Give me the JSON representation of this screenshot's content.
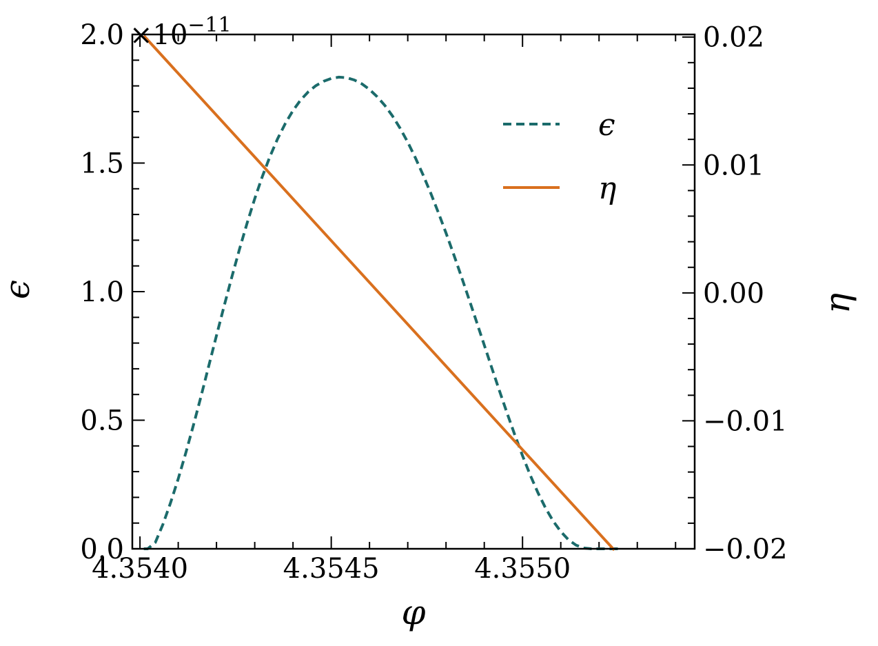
{
  "chart_data": {
    "type": "line",
    "x_axis": {
      "label": "φ",
      "range": [
        4.35398,
        4.35545
      ],
      "ticks": [
        4.354,
        4.3545,
        4.355
      ],
      "tick_labels": [
        "4.3540",
        "4.3545",
        "4.3550"
      ],
      "minor_step": 0.0001
    },
    "y_left": {
      "label": "ϵ",
      "range": [
        0,
        2.0
      ],
      "ticks": [
        0.0,
        0.5,
        1.0,
        1.5,
        2.0
      ],
      "tick_labels": [
        "0.0",
        "0.5",
        "1.0",
        "1.5",
        "2.0"
      ],
      "minor_step": 0.1,
      "scale_factor_label": "×10",
      "scale_factor_exponent": "−11"
    },
    "y_right": {
      "label": "η",
      "range": [
        -0.02,
        0.0202
      ],
      "ticks": [
        -0.02,
        -0.01,
        0.0,
        0.01,
        0.02
      ],
      "tick_labels": [
        "−0.02",
        "−0.01",
        "0.00",
        "0.01",
        "0.02"
      ],
      "minor_step": 0.002
    },
    "series": [
      {
        "name": "ϵ",
        "axis": "left",
        "color": "#1b6b6b",
        "dash": "dashed",
        "x": [
          4.35401,
          4.35402,
          4.35404,
          4.35406,
          4.35408,
          4.3541,
          4.35412,
          4.35414,
          4.35416,
          4.35418,
          4.3542,
          4.35422,
          4.35424,
          4.35426,
          4.35428,
          4.3543,
          4.35432,
          4.35434,
          4.35436,
          4.35438,
          4.3544,
          4.35442,
          4.35444,
          4.35446,
          4.35448,
          4.3545,
          4.35452,
          4.35454,
          4.35456,
          4.35458,
          4.3546,
          4.35462,
          4.35464,
          4.35466,
          4.35468,
          4.3547,
          4.35472,
          4.35474,
          4.35476,
          4.35478,
          4.3548,
          4.35482,
          4.35484,
          4.35486,
          4.35488,
          4.3549,
          4.35492,
          4.35494,
          4.35496,
          4.35498,
          4.355,
          4.35502,
          4.35504,
          4.35506,
          4.35508,
          4.3551,
          4.35512,
          4.35514,
          4.35516,
          4.35518,
          4.3552,
          4.35522,
          4.35524,
          4.35526
        ],
        "y": [
          0.0,
          0.0,
          0.024,
          0.095,
          0.179,
          0.272,
          0.374,
          0.482,
          0.595,
          0.712,
          0.829,
          0.944,
          1.056,
          1.164,
          1.266,
          1.361,
          1.448,
          1.526,
          1.595,
          1.654,
          1.704,
          1.745,
          1.777,
          1.801,
          1.818,
          1.829,
          1.834,
          1.832,
          1.823,
          1.808,
          1.786,
          1.758,
          1.724,
          1.683,
          1.635,
          1.581,
          1.52,
          1.454,
          1.383,
          1.307,
          1.228,
          1.145,
          1.059,
          0.971,
          0.882,
          0.792,
          0.702,
          0.613,
          0.526,
          0.442,
          0.362,
          0.287,
          0.219,
          0.159,
          0.108,
          0.067,
          0.035,
          0.014,
          0.003,
          0.0,
          0.0,
          0.0,
          0.0,
          0.0
        ]
      },
      {
        "name": "η",
        "axis": "right",
        "color": "#d9701e",
        "dash": "solid",
        "x": [
          4.35401,
          4.35524
        ],
        "y": [
          0.0201,
          -0.0201
        ]
      }
    ],
    "legend": {
      "position": "upper-right",
      "entries": [
        "ϵ",
        "η"
      ]
    },
    "grid": false
  }
}
